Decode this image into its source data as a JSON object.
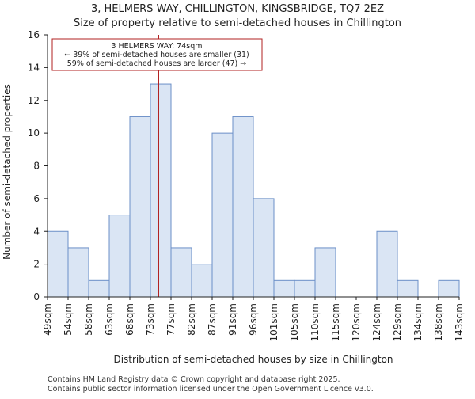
{
  "chart_data": {
    "type": "histogram",
    "title": "3, HELMERS WAY, CHILLINGTON, KINGSBRIDGE, TQ7 2EZ",
    "subtitle": "Size of property relative to semi-detached houses in Chillington",
    "xlabel": "Distribution of semi-detached houses by size in Chillington",
    "ylabel": "Number of semi-detached properties",
    "categories": [
      "49sqm",
      "54sqm",
      "58sqm",
      "63sqm",
      "68sqm",
      "73sqm",
      "77sqm",
      "82sqm",
      "87sqm",
      "91sqm",
      "96sqm",
      "101sqm",
      "105sqm",
      "110sqm",
      "115sqm",
      "120sqm",
      "124sqm",
      "129sqm",
      "134sqm",
      "138sqm",
      "143sqm"
    ],
    "values": [
      4,
      3,
      1,
      5,
      11,
      13,
      3,
      2,
      10,
      11,
      6,
      1,
      1,
      3,
      0,
      0,
      4,
      1,
      0,
      1
    ],
    "ylim": [
      0,
      16
    ],
    "yticks": [
      0,
      2,
      4,
      6,
      8,
      10,
      12,
      14,
      16
    ],
    "bar_color": "#dae5f4",
    "bar_edge_color": "#6b8fc7",
    "marker": {
      "value": 74,
      "bin_index": 5,
      "bin_fraction": 0.4,
      "color": "#b22222",
      "annotation": [
        "3 HELMERS WAY: 74sqm",
        "← 39% of semi-detached houses are smaller (31)",
        "59% of semi-detached houses are larger (47) →"
      ]
    },
    "footer": [
      "Contains HM Land Registry data © Crown copyright and database right 2025.",
      "Contains public sector information licensed under the Open Government Licence v3.0."
    ]
  }
}
